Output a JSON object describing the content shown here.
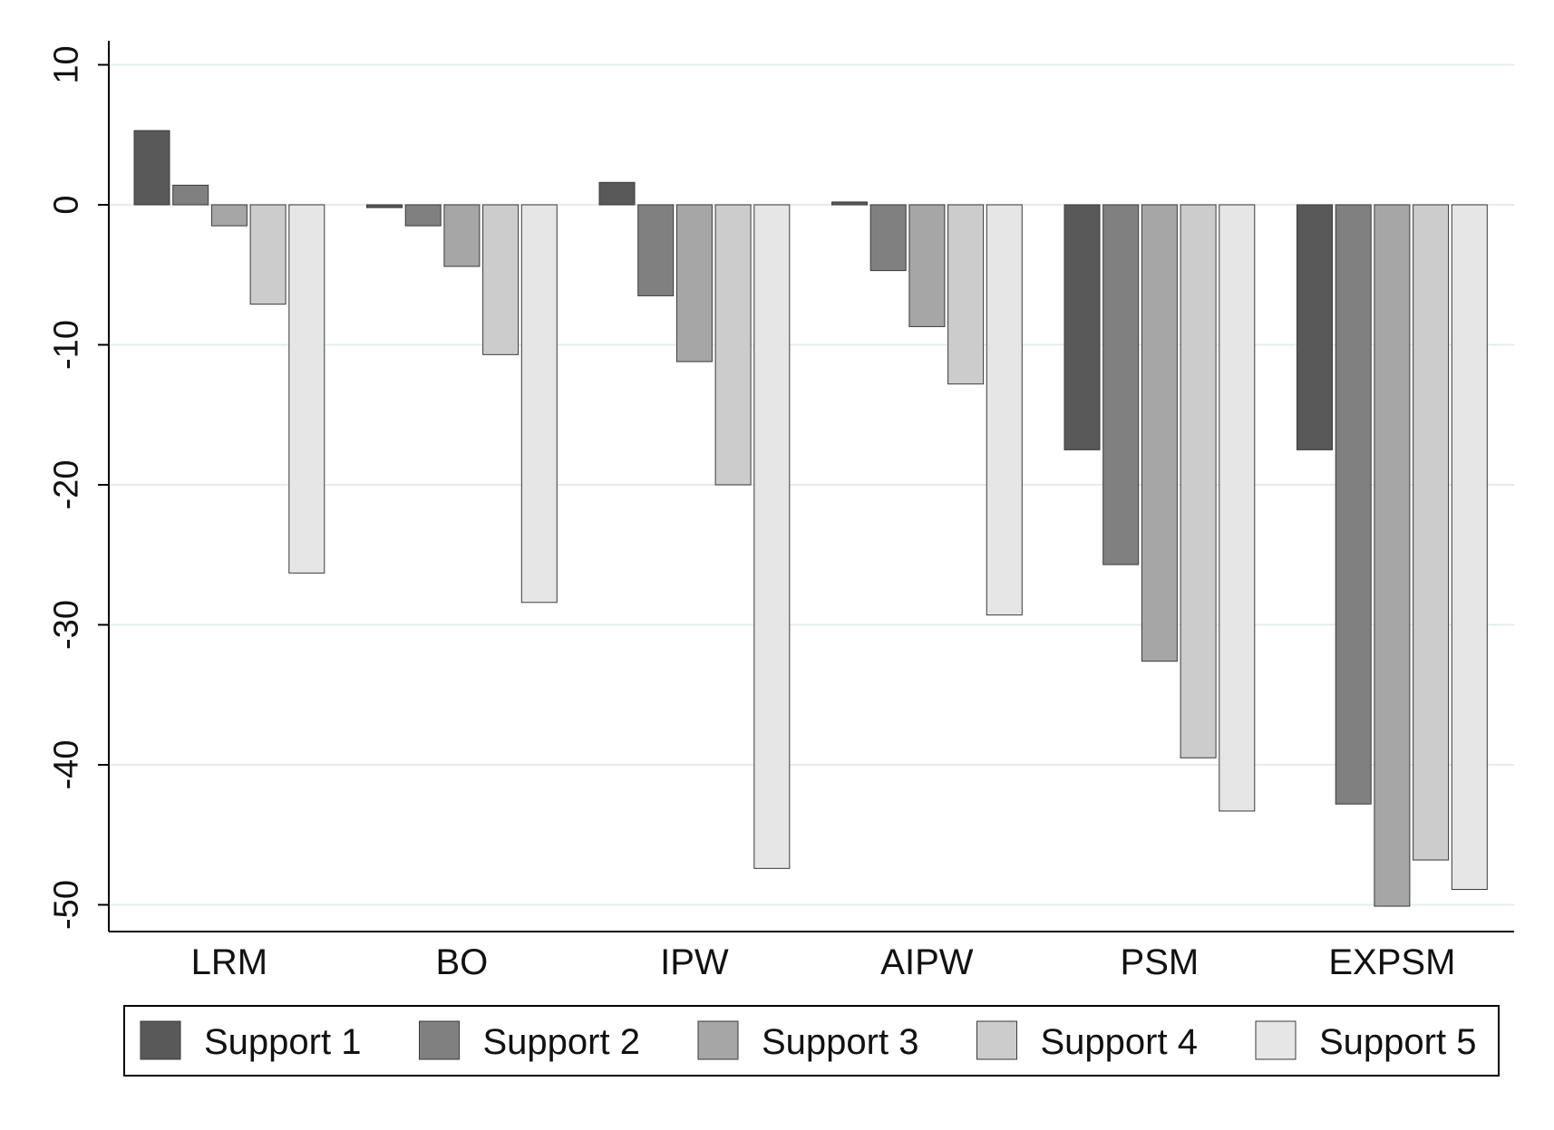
{
  "chart_data": {
    "type": "bar",
    "categories": [
      "LRM",
      "BO",
      "IPW",
      "AIPW",
      "PSM",
      "EXPSM"
    ],
    "series": [
      {
        "name": "Support 1",
        "color": "#595959",
        "values": [
          5.3,
          -0.2,
          1.6,
          0.2,
          -17.5,
          -17.5
        ]
      },
      {
        "name": "Support 2",
        "color": "#808080",
        "values": [
          1.4,
          -1.5,
          -6.5,
          -4.7,
          -25.7,
          -42.8
        ]
      },
      {
        "name": "Support 3",
        "color": "#a6a6a6",
        "values": [
          -1.5,
          -4.4,
          -11.2,
          -8.7,
          -32.6,
          -50.1
        ]
      },
      {
        "name": "Support 4",
        "color": "#cccccc",
        "values": [
          -7.1,
          -10.7,
          -20.0,
          -12.8,
          -39.5,
          -46.8
        ]
      },
      {
        "name": "Support 5",
        "color": "#e6e6e6",
        "values": [
          -26.3,
          -28.4,
          -47.4,
          -29.3,
          -43.3,
          -48.9
        ]
      }
    ],
    "yticks": [
      10,
      0,
      -10,
      -20,
      -30,
      -40,
      -50
    ],
    "ylim": [
      -52,
      12
    ],
    "grid": true,
    "legend": "bottom"
  }
}
